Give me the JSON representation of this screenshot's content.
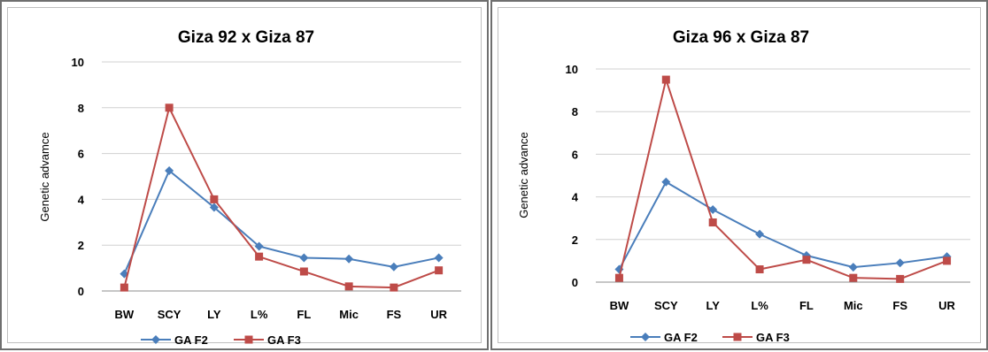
{
  "colors": {
    "f2": "#4a7ebb",
    "f3": "#be4b48",
    "grid": "#d0d0d0",
    "axis": "#8c8c8c"
  },
  "chart_data": [
    {
      "type": "line",
      "title": "Giza 92 x Giza 87",
      "xlabel": "",
      "ylabel": "Genetic advamce",
      "ylim": [
        0,
        10
      ],
      "yticks": [
        0,
        2,
        4,
        6,
        8,
        10
      ],
      "grid": true,
      "legend": "bottom",
      "categories": [
        "BW",
        "SCY",
        "LY",
        "L%",
        "FL",
        "Mic",
        "FS",
        "UR"
      ],
      "series": [
        {
          "name": "GA F2",
          "marker": "diamond",
          "values": [
            0.75,
            5.25,
            3.65,
            1.95,
            1.45,
            1.4,
            1.05,
            1.45
          ]
        },
        {
          "name": "GA F3",
          "marker": "square",
          "values": [
            0.15,
            8.0,
            4.0,
            1.5,
            0.85,
            0.2,
            0.15,
            0.9
          ]
        }
      ]
    },
    {
      "type": "line",
      "title": "Giza 96 x Giza 87",
      "xlabel": "",
      "ylabel": "Genetic advance",
      "ylim": [
        0,
        10
      ],
      "yticks": [
        0,
        2,
        4,
        6,
        8,
        10
      ],
      "grid": true,
      "legend": "bottom",
      "categories": [
        "BW",
        "SCY",
        "LY",
        "L%",
        "FL",
        "Mic",
        "FS",
        "UR"
      ],
      "series": [
        {
          "name": "GA F2",
          "marker": "diamond",
          "values": [
            0.6,
            4.7,
            3.4,
            2.25,
            1.25,
            0.7,
            0.9,
            1.2
          ]
        },
        {
          "name": "GA F3",
          "marker": "square",
          "values": [
            0.2,
            9.5,
            2.8,
            0.6,
            1.05,
            0.2,
            0.15,
            1.0
          ]
        }
      ]
    }
  ]
}
